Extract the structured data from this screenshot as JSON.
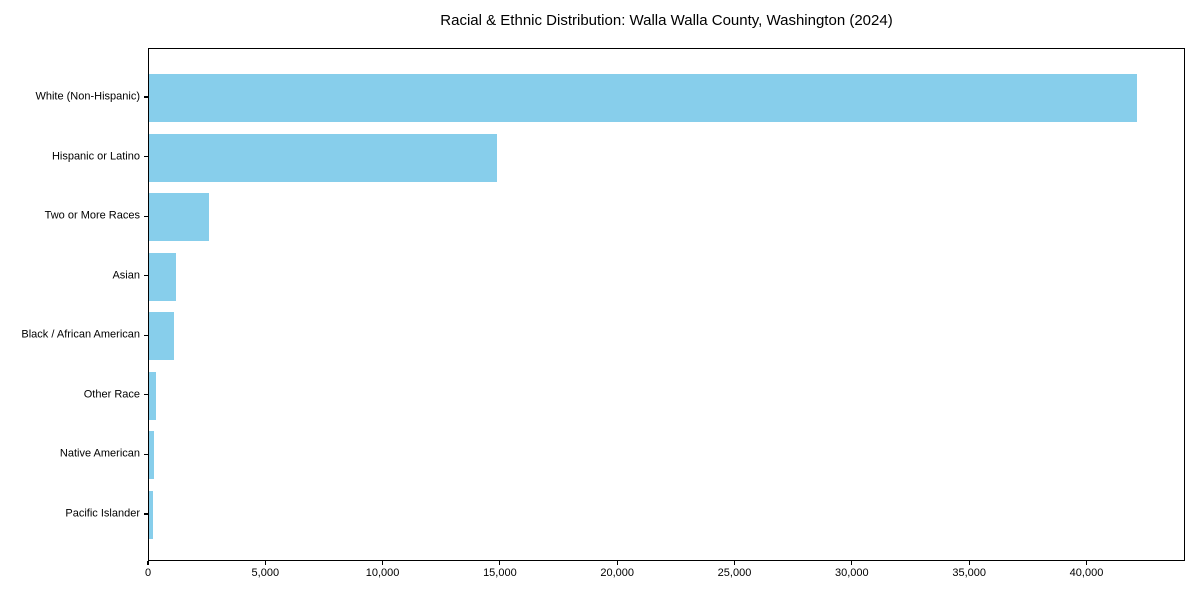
{
  "title": "Racial & Ethnic Distribution: Walla Walla County, Washington (2024)",
  "colors": {
    "bar": "#87ceeb",
    "axis": "#000000",
    "text": "#000000",
    "background": "#ffffff"
  },
  "chart_data": {
    "type": "bar",
    "orientation": "horizontal",
    "title": "Racial & Ethnic Distribution: Walla Walla County, Washington (2024)",
    "xlabel": "",
    "ylabel": "",
    "categories": [
      "White (Non-Hispanic)",
      "Hispanic or Latino",
      "Two or More Races",
      "Asian",
      "Black / African American",
      "Other Race",
      "Native American",
      "Pacific Islander"
    ],
    "values": [
      42100,
      14850,
      2550,
      1150,
      1050,
      300,
      220,
      160
    ],
    "bar_color": "#87ceeb",
    "xlim": [
      0,
      44200
    ],
    "xticks": {
      "values": [
        0,
        5000,
        10000,
        15000,
        20000,
        25000,
        30000,
        35000,
        40000
      ],
      "labels": [
        "0",
        "5,000",
        "10,000",
        "15,000",
        "20,000",
        "25,000",
        "30,000",
        "35,000",
        "40,000"
      ]
    },
    "grid": false,
    "legend": null
  }
}
